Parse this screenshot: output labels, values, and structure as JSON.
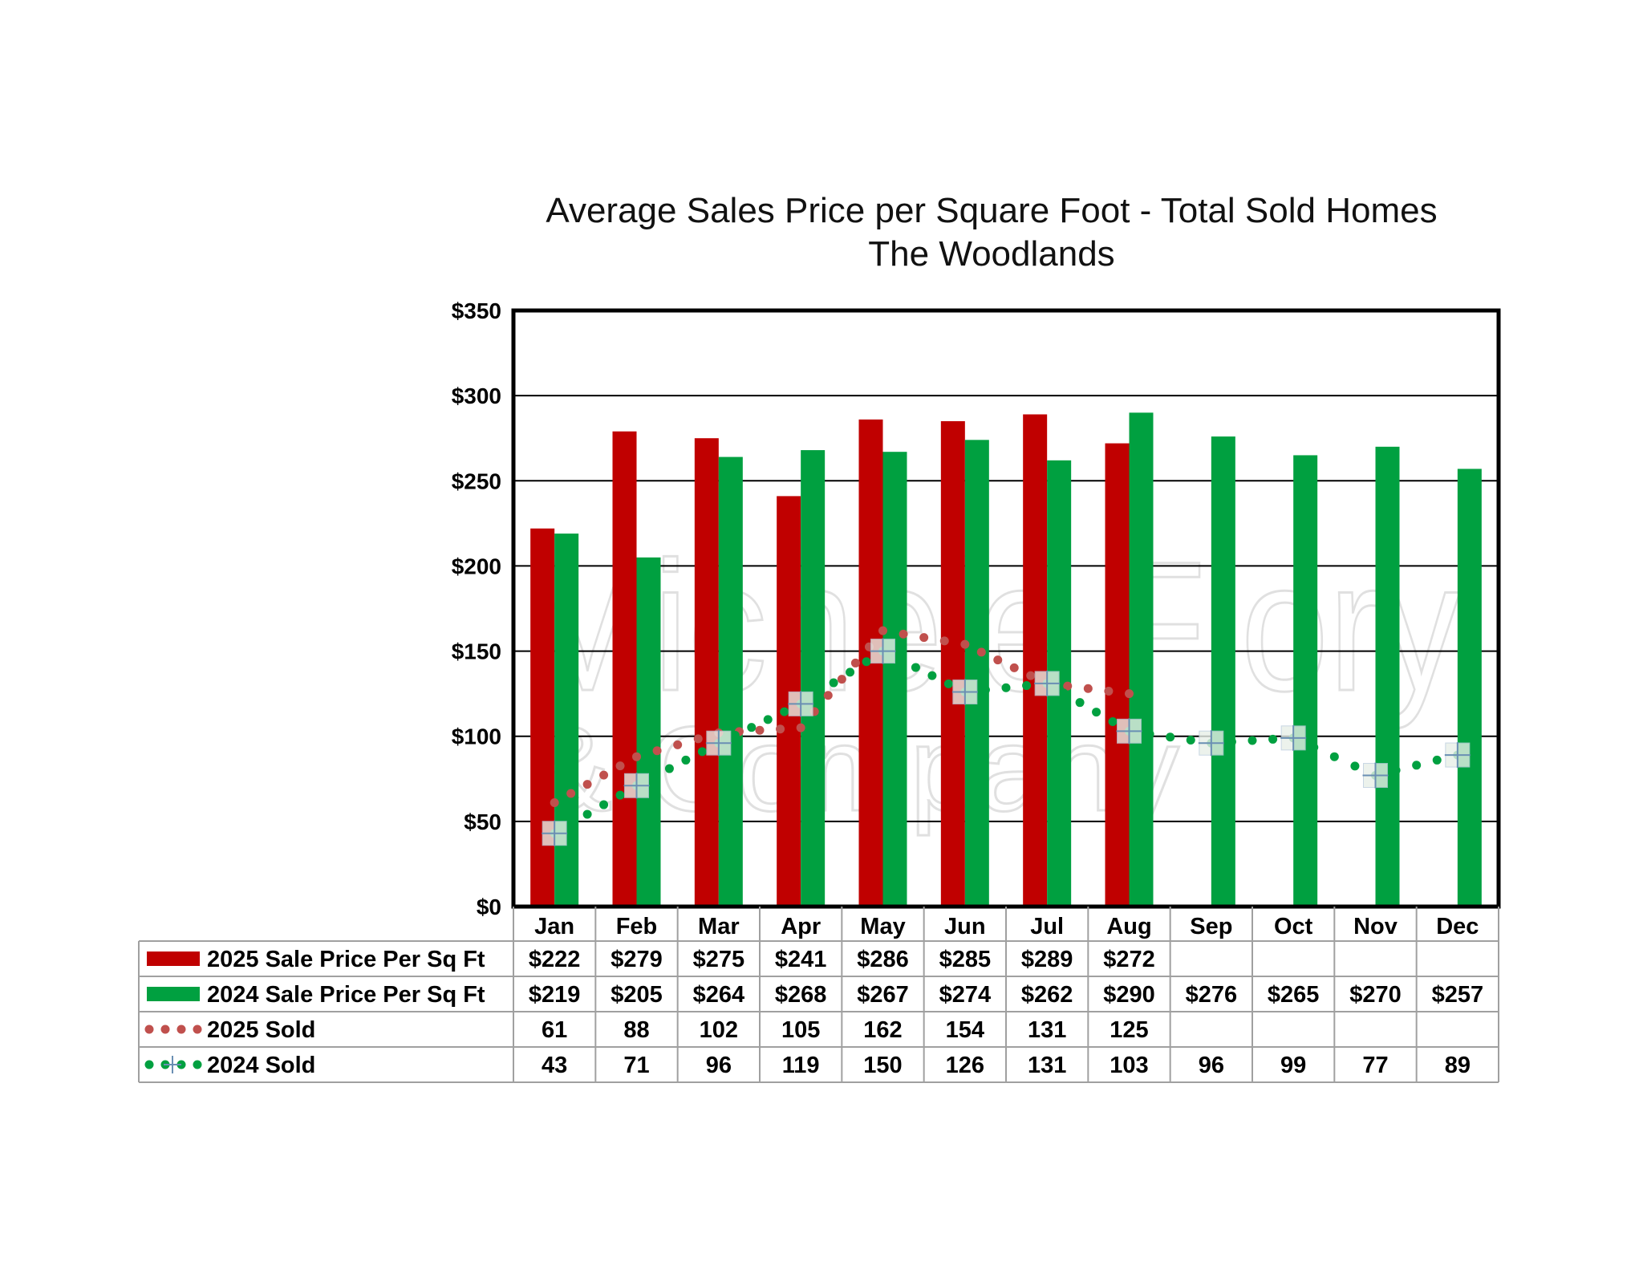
{
  "chart_data": {
    "type": "bar",
    "title": "Average Sales Price per Square Foot - Total Sold Homes",
    "subtitle": "The Woodlands",
    "categories": [
      "Jan",
      "Feb",
      "Mar",
      "Apr",
      "May",
      "Jun",
      "Jul",
      "Aug",
      "Sep",
      "Oct",
      "Nov",
      "Dec"
    ],
    "ylim": [
      0,
      350
    ],
    "y_ticks": [
      0,
      50,
      100,
      150,
      200,
      250,
      300,
      350
    ],
    "y_tick_labels": [
      "$0",
      "$50",
      "$100",
      "$150",
      "$200",
      "$250",
      "$300",
      "$350"
    ],
    "grid": true,
    "legend_placement": "data-table-left",
    "series": [
      {
        "name": "2025 Sale Price Per Sq Ft",
        "kind": "bar",
        "color": "#c00000",
        "values": [
          222,
          279,
          275,
          241,
          286,
          285,
          289,
          272,
          null,
          null,
          null,
          null
        ],
        "labels": [
          "$222",
          "$279",
          "$275",
          "$241",
          "$286",
          "$285",
          "$289",
          "$272",
          "",
          "",
          "",
          ""
        ]
      },
      {
        "name": "2024 Sale Price Per Sq Ft",
        "kind": "bar",
        "color": "#00a040",
        "values": [
          219,
          205,
          264,
          268,
          267,
          274,
          262,
          290,
          276,
          265,
          270,
          257
        ],
        "labels": [
          "$219",
          "$205",
          "$264",
          "$268",
          "$267",
          "$274",
          "$262",
          "$290",
          "$276",
          "$265",
          "$270",
          "$257"
        ]
      },
      {
        "name": "2025 Sold",
        "kind": "dotted-line",
        "color": "#c0504d",
        "values": [
          61,
          88,
          102,
          105,
          162,
          154,
          131,
          125,
          null,
          null,
          null,
          null
        ],
        "labels": [
          "61",
          "88",
          "102",
          "105",
          "162",
          "154",
          "131",
          "125",
          "",
          "",
          "",
          ""
        ]
      },
      {
        "name": "2024 Sold",
        "kind": "dotted-line-with-markers",
        "color": "#00a040",
        "marker": "plus",
        "values": [
          43,
          71,
          96,
          119,
          150,
          126,
          131,
          103,
          96,
          99,
          77,
          89
        ],
        "labels": [
          "43",
          "71",
          "96",
          "119",
          "150",
          "126",
          "131",
          "103",
          "96",
          "99",
          "77",
          "89"
        ]
      }
    ]
  },
  "watermark": {
    "line1": "Michele Flory",
    "line2": "& Company"
  }
}
